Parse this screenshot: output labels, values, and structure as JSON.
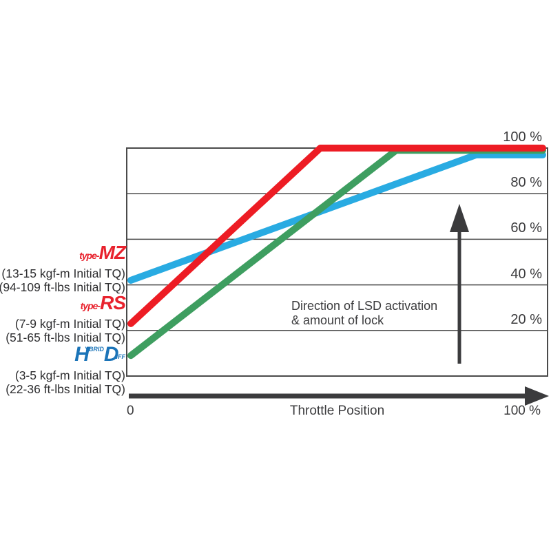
{
  "chart_data": {
    "type": "line",
    "title": "",
    "xlabel": "Throttle Position",
    "ylabel": "",
    "xlim": [
      0,
      100
    ],
    "ylim": [
      0,
      100
    ],
    "grid": true,
    "legend_position": "left",
    "x_axis": {
      "min_label": "0",
      "max_label": "100 %"
    },
    "y_ticks": [
      {
        "value": 20,
        "label": "20 %"
      },
      {
        "value": 40,
        "label": "40 %"
      },
      {
        "value": 60,
        "label": "60 %"
      },
      {
        "value": 80,
        "label": "80 %"
      },
      {
        "value": 100,
        "label": "100 %"
      }
    ],
    "series": [
      {
        "name": "type-MZ",
        "color": "#29abe2",
        "points": [
          [
            0,
            42
          ],
          [
            83,
            97
          ],
          [
            100,
            97
          ]
        ]
      },
      {
        "name": "HYBRID DIFF",
        "color": "#3e9e60",
        "points": [
          [
            0,
            9
          ],
          [
            64,
            99
          ],
          [
            100,
            99
          ]
        ]
      },
      {
        "name": "type-RS",
        "color": "#ed1c24",
        "points": [
          [
            0,
            23
          ],
          [
            46,
            100
          ],
          [
            100,
            100
          ]
        ]
      }
    ],
    "annotation": {
      "line1": "Direction of LSD activation",
      "line2": "& amount of lock"
    }
  },
  "legend": {
    "items": [
      {
        "logo_prefix": "type-",
        "logo_name": "MZ",
        "lines": [
          "(13-15 kgf-m Initial TQ)",
          "(94-109 ft-lbs Initial TQ)"
        ]
      },
      {
        "logo_prefix": "type-",
        "logo_name": "RS",
        "lines": [
          "(7-9 kgf-m Initial TQ)",
          "(51-65 ft-lbs Initial TQ)"
        ]
      },
      {
        "logo_h": "H",
        "logo_ybrid": "YBRID",
        "logo_d": "D",
        "logo_iff": "IFF",
        "lines": [
          "(3-5 kgf-m Initial TQ)",
          "(22-36 ft-lbs Initial TQ)"
        ]
      }
    ]
  }
}
